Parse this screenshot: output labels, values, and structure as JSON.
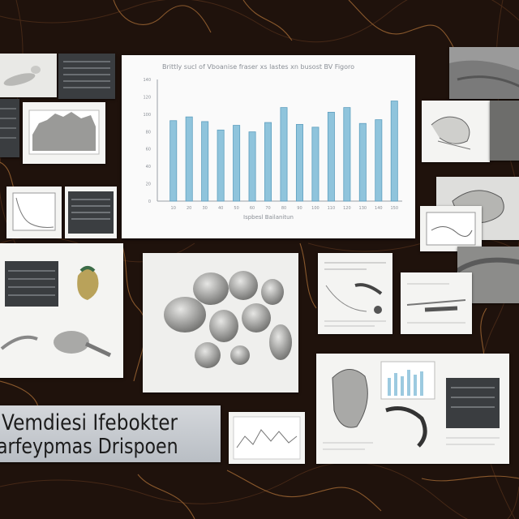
{
  "caption": {
    "line1": "Vemdiesi Ifebokter",
    "line2": "arfeypmas Drispoen"
  },
  "chart_data": {
    "type": "bar",
    "title": "Brittly sucl of Vboanise fraser xs lastes xn busost BV Figoro",
    "xlabel": "Ispbesl Bailanitun",
    "ylabel": "",
    "categories": [
      "10",
      "20",
      "30",
      "40",
      "50",
      "60",
      "70",
      "80",
      "90",
      "100",
      "110",
      "120",
      "130",
      "140",
      "150"
    ],
    "values": [
      86,
      90,
      85,
      76,
      81,
      74,
      84,
      100,
      82,
      79,
      95,
      100,
      83,
      87,
      107
    ],
    "ylim": [
      0,
      130
    ],
    "yticks": [
      "0",
      "20",
      "40",
      "60",
      "80",
      "100",
      "120",
      "140"
    ],
    "grid": false,
    "bar_color": "#8fc4dc"
  },
  "colors": {
    "background": "#1f120c",
    "vein": "#8a5a2e",
    "bar": "#8fc4dc",
    "bar_edge": "#5e9fbf"
  }
}
